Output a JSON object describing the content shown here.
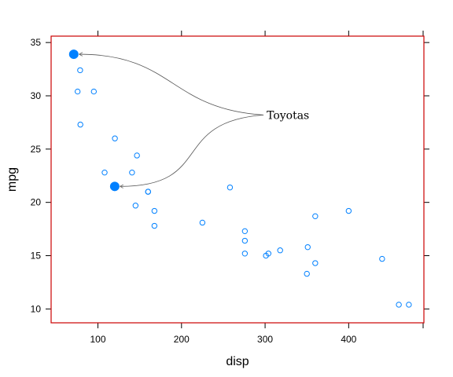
{
  "chart_data": {
    "type": "scatter",
    "xlabel": "disp",
    "ylabel": "mpg",
    "xlim": [
      44,
      490
    ],
    "ylim": [
      8.7,
      35.6
    ],
    "x_ticks": [
      100,
      200,
      300,
      400
    ],
    "y_ticks": [
      10,
      15,
      20,
      25,
      30,
      35
    ],
    "colors": {
      "frame": "#cc0000",
      "points": "#0080ff",
      "annotation_line": "#555555"
    },
    "series": [
      {
        "points": [
          {
            "x": 160,
            "y": 21.0
          },
          {
            "x": 160,
            "y": 21.0
          },
          {
            "x": 108,
            "y": 22.8
          },
          {
            "x": 258,
            "y": 21.4
          },
          {
            "x": 360,
            "y": 18.7
          },
          {
            "x": 225,
            "y": 18.1
          },
          {
            "x": 360,
            "y": 14.3
          },
          {
            "x": 146.7,
            "y": 24.4
          },
          {
            "x": 140.8,
            "y": 22.8
          },
          {
            "x": 167.6,
            "y": 19.2
          },
          {
            "x": 167.6,
            "y": 17.8
          },
          {
            "x": 275.8,
            "y": 16.4
          },
          {
            "x": 275.8,
            "y": 17.3
          },
          {
            "x": 275.8,
            "y": 15.2
          },
          {
            "x": 472,
            "y": 10.4
          },
          {
            "x": 460,
            "y": 10.4
          },
          {
            "x": 440,
            "y": 14.7
          },
          {
            "x": 78.7,
            "y": 32.4
          },
          {
            "x": 75.7,
            "y": 30.4
          },
          {
            "x": 318,
            "y": 15.5
          },
          {
            "x": 304,
            "y": 15.2
          },
          {
            "x": 350,
            "y": 13.3
          },
          {
            "x": 400,
            "y": 19.2
          },
          {
            "x": 79,
            "y": 27.3
          },
          {
            "x": 120.3,
            "y": 26.0
          },
          {
            "x": 95.1,
            "y": 30.4
          },
          {
            "x": 351,
            "y": 15.8
          },
          {
            "x": 145,
            "y": 19.7
          },
          {
            "x": 301,
            "y": 15.0
          }
        ]
      }
    ],
    "highlighted": [
      {
        "x": 71.1,
        "y": 33.9
      },
      {
        "x": 120.1,
        "y": 21.5
      }
    ],
    "annotation": {
      "text": "Toyotas",
      "x": 300,
      "y": 28.2
    }
  }
}
